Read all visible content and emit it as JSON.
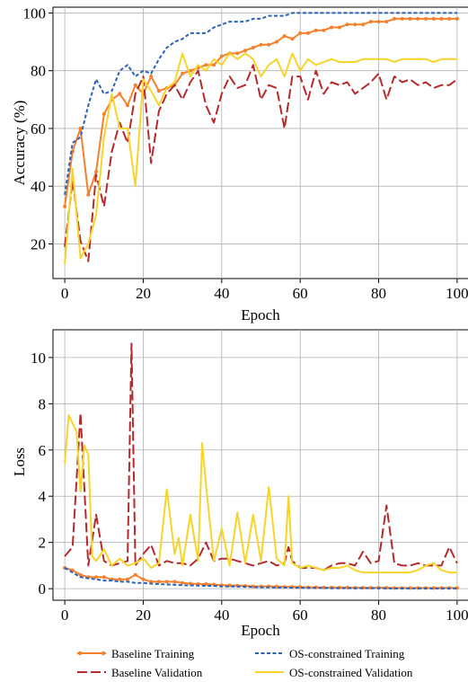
{
  "colors": {
    "baseline_training": "#F4802E",
    "baseline_validation": "#B42A2C",
    "os_training": "#2A62B8",
    "os_validation": "#F7D42A",
    "grid": "#b0b0b0",
    "axis": "#000000"
  },
  "legend": {
    "placement": "bottom-center",
    "items": [
      "Baseline Training",
      "OS-constrained Training",
      "Baseline Validation",
      "OS-constrained Validation"
    ]
  },
  "chart_data": [
    {
      "type": "line",
      "xlabel": "Epoch",
      "ylabel": "Accuracy (%)",
      "xlim": [
        -3,
        103
      ],
      "ylim": [
        8,
        102
      ],
      "xticks": [
        0,
        20,
        40,
        60,
        80,
        100
      ],
      "yticks": [
        20,
        40,
        60,
        80,
        100
      ],
      "grid": true,
      "series": [
        {
          "name": "Baseline Training",
          "style": "solid-markers",
          "x": [
            0,
            2,
            4,
            6,
            8,
            10,
            12,
            14,
            16,
            18,
            20,
            22,
            24,
            26,
            28,
            30,
            32,
            34,
            36,
            38,
            40,
            42,
            44,
            46,
            48,
            50,
            52,
            54,
            56,
            58,
            60,
            62,
            64,
            66,
            68,
            70,
            72,
            74,
            76,
            78,
            80,
            82,
            84,
            86,
            88,
            90,
            92,
            94,
            96,
            98,
            100
          ],
          "y": [
            33,
            52,
            60,
            37,
            45,
            65,
            70,
            72,
            68,
            75,
            72,
            78,
            73,
            74,
            75,
            79,
            80,
            81,
            82,
            82,
            85,
            86,
            86,
            87,
            88,
            89,
            89,
            90,
            92,
            91,
            93,
            93,
            94,
            94,
            95,
            95,
            96,
            96,
            96,
            97,
            97,
            97,
            98,
            98,
            98,
            98,
            98,
            98,
            98,
            98,
            98
          ]
        },
        {
          "name": "Baseline Validation",
          "style": "long-dash",
          "x": [
            0,
            2,
            4,
            6,
            8,
            10,
            12,
            14,
            16,
            18,
            20,
            22,
            24,
            26,
            28,
            30,
            32,
            34,
            36,
            38,
            40,
            42,
            44,
            46,
            48,
            50,
            52,
            54,
            56,
            58,
            60,
            62,
            64,
            66,
            68,
            70,
            72,
            74,
            76,
            78,
            80,
            82,
            84,
            86,
            88,
            90,
            92,
            94,
            96,
            98,
            100
          ],
          "y": [
            19,
            42,
            21,
            14,
            44,
            33,
            52,
            62,
            55,
            72,
            78,
            48,
            66,
            72,
            75,
            70,
            76,
            80,
            68,
            62,
            72,
            78,
            74,
            75,
            82,
            70,
            75,
            74,
            60,
            78,
            78,
            70,
            80,
            72,
            76,
            75,
            76,
            72,
            74,
            76,
            79,
            70,
            78,
            76,
            77,
            75,
            76,
            74,
            75,
            75,
            77
          ]
        },
        {
          "name": "OS-constrained Training",
          "style": "short-dash",
          "x": [
            0,
            2,
            4,
            6,
            8,
            10,
            12,
            14,
            16,
            18,
            20,
            22,
            24,
            26,
            28,
            30,
            32,
            34,
            36,
            38,
            40,
            42,
            44,
            46,
            48,
            50,
            52,
            54,
            56,
            58,
            60,
            62,
            64,
            66,
            68,
            70,
            72,
            74,
            76,
            78,
            80,
            82,
            84,
            86,
            88,
            90,
            92,
            94,
            96,
            98,
            100
          ],
          "y": [
            37,
            55,
            57,
            68,
            77,
            72,
            73,
            80,
            82,
            78,
            80,
            79,
            84,
            88,
            90,
            91,
            93,
            93,
            93,
            95,
            96,
            97,
            97,
            97,
            98,
            98,
            99,
            99,
            99,
            100,
            100,
            100,
            100,
            100,
            100,
            100,
            100,
            100,
            100,
            100,
            100,
            100,
            100,
            100,
            100,
            100,
            100,
            100,
            100,
            100,
            100
          ]
        },
        {
          "name": "OS-constrained Validation",
          "style": "solid",
          "x": [
            0,
            2,
            4,
            6,
            8,
            10,
            12,
            14,
            16,
            18,
            20,
            22,
            24,
            26,
            28,
            30,
            32,
            34,
            36,
            38,
            40,
            42,
            44,
            46,
            48,
            50,
            52,
            54,
            56,
            58,
            60,
            62,
            64,
            66,
            68,
            70,
            72,
            74,
            76,
            78,
            80,
            82,
            84,
            86,
            88,
            90,
            92,
            94,
            96,
            98,
            100
          ],
          "y": [
            13,
            46,
            15,
            20,
            30,
            57,
            72,
            60,
            60,
            40,
            77,
            73,
            68,
            74,
            76,
            86,
            78,
            82,
            80,
            84,
            82,
            86,
            84,
            86,
            84,
            78,
            82,
            84,
            78,
            86,
            80,
            84,
            82,
            83,
            84,
            83,
            83,
            83,
            84,
            84,
            84,
            84,
            83,
            84,
            84,
            84,
            84,
            83,
            84,
            84,
            84
          ]
        }
      ]
    },
    {
      "type": "line",
      "xlabel": "Epoch",
      "ylabel": "Loss",
      "xlim": [
        -3,
        103
      ],
      "ylim": [
        -0.5,
        11.2
      ],
      "xticks": [
        0,
        20,
        40,
        60,
        80,
        100
      ],
      "yticks": [
        0,
        2,
        4,
        6,
        8,
        10
      ],
      "grid": true,
      "series": [
        {
          "name": "Baseline Training",
          "style": "solid-markers",
          "x": [
            0,
            2,
            4,
            6,
            8,
            10,
            12,
            14,
            16,
            18,
            20,
            22,
            24,
            26,
            28,
            30,
            32,
            34,
            36,
            38,
            40,
            42,
            44,
            46,
            48,
            50,
            52,
            54,
            56,
            58,
            60,
            62,
            64,
            66,
            68,
            70,
            72,
            74,
            76,
            78,
            80,
            82,
            84,
            86,
            88,
            90,
            92,
            94,
            96,
            98,
            100
          ],
          "y": [
            0.9,
            0.8,
            0.6,
            0.5,
            0.5,
            0.5,
            0.4,
            0.4,
            0.4,
            0.6,
            0.4,
            0.3,
            0.3,
            0.3,
            0.3,
            0.25,
            0.22,
            0.2,
            0.2,
            0.18,
            0.15,
            0.14,
            0.13,
            0.12,
            0.1,
            0.1,
            0.1,
            0.09,
            0.08,
            0.08,
            0.07,
            0.06,
            0.06,
            0.05,
            0.05,
            0.05,
            0.05,
            0.04,
            0.04,
            0.04,
            0.04,
            0.04,
            0.03,
            0.03,
            0.03,
            0.03,
            0.03,
            0.03,
            0.03,
            0.03,
            0.03
          ]
        },
        {
          "name": "Baseline Validation",
          "style": "long-dash",
          "x": [
            0,
            2,
            4,
            6,
            8,
            10,
            12,
            14,
            16,
            17,
            18,
            20,
            22,
            24,
            26,
            28,
            30,
            32,
            34,
            36,
            38,
            40,
            42,
            44,
            46,
            48,
            50,
            52,
            54,
            56,
            57,
            58,
            60,
            62,
            64,
            66,
            68,
            70,
            72,
            74,
            76,
            78,
            80,
            82,
            84,
            86,
            88,
            90,
            92,
            94,
            96,
            98,
            100
          ],
          "y": [
            1.4,
            1.8,
            7.6,
            1.0,
            3.2,
            1.2,
            1.0,
            1.1,
            1.2,
            10.6,
            1.0,
            1.5,
            1.9,
            1.0,
            1.2,
            1.1,
            1.1,
            1.0,
            1.3,
            2.0,
            1.2,
            1.3,
            1.3,
            1.2,
            1.1,
            1.0,
            1.1,
            1.2,
            1.0,
            1.1,
            1.8,
            1.2,
            0.9,
            0.9,
            0.9,
            0.8,
            1.0,
            1.1,
            1.1,
            1.0,
            1.6,
            1.1,
            1.2,
            3.6,
            1.1,
            1.0,
            1.0,
            1.1,
            1.0,
            1.0,
            1.0,
            1.8,
            1.1
          ]
        },
        {
          "name": "OS-constrained Training",
          "style": "short-dash",
          "x": [
            0,
            2,
            4,
            6,
            8,
            10,
            12,
            14,
            16,
            18,
            20,
            22,
            24,
            26,
            28,
            30,
            32,
            34,
            36,
            38,
            40,
            42,
            44,
            46,
            48,
            50,
            52,
            54,
            56,
            58,
            60,
            62,
            64,
            66,
            68,
            70,
            72,
            74,
            76,
            78,
            80,
            82,
            84,
            86,
            88,
            90,
            92,
            94,
            96,
            98,
            100
          ],
          "y": [
            0.9,
            0.7,
            0.5,
            0.45,
            0.4,
            0.35,
            0.35,
            0.3,
            0.3,
            0.25,
            0.25,
            0.22,
            0.2,
            0.18,
            0.17,
            0.15,
            0.14,
            0.13,
            0.12,
            0.12,
            0.1,
            0.1,
            0.09,
            0.08,
            0.07,
            0.06,
            0.06,
            0.05,
            0.05,
            0.04,
            0.04,
            0.03,
            0.03,
            0.03,
            0.02,
            0.02,
            0.02,
            0.02,
            0.02,
            0.02,
            0.02,
            0.01,
            0.01,
            0.01,
            0.01,
            0.01,
            0.01,
            0.01,
            0.01,
            0.01,
            0.01
          ]
        },
        {
          "name": "OS-constrained Validation",
          "style": "solid",
          "x": [
            0,
            1,
            3,
            4,
            5,
            6,
            7,
            8,
            10,
            12,
            14,
            16,
            18,
            20,
            22,
            24,
            26,
            28,
            29,
            30,
            32,
            34,
            35,
            36,
            38,
            40,
            42,
            44,
            46,
            48,
            50,
            52,
            54,
            56,
            57,
            58,
            60,
            62,
            64,
            66,
            68,
            70,
            72,
            74,
            76,
            78,
            80,
            82,
            84,
            86,
            88,
            90,
            92,
            94,
            96,
            98,
            100
          ],
          "y": [
            5.4,
            7.5,
            6.8,
            4.2,
            6.2,
            5.8,
            1.4,
            1.2,
            1.7,
            1.0,
            1.3,
            1.0,
            1.1,
            1.3,
            0.9,
            1.1,
            4.3,
            1.5,
            2.2,
            1.0,
            3.2,
            1.2,
            6.3,
            4.5,
            1.2,
            2.6,
            1.0,
            3.3,
            1.1,
            3.2,
            1.2,
            4.4,
            1.3,
            1.0,
            4.0,
            1.1,
            0.9,
            1.0,
            0.9,
            0.8,
            0.9,
            0.9,
            1.0,
            0.8,
            0.7,
            0.7,
            0.7,
            0.7,
            0.7,
            0.7,
            0.7,
            0.8,
            1.0,
            1.1,
            0.8,
            0.7,
            0.7
          ]
        }
      ]
    }
  ]
}
